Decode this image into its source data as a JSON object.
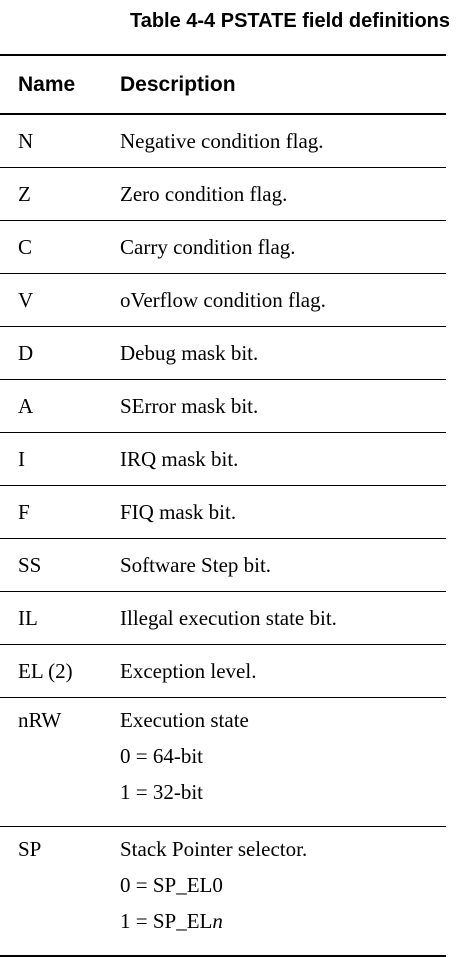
{
  "caption": "Table 4-4 PSTATE field definitions",
  "columns": {
    "name": "Name",
    "description": "Description"
  },
  "rows": [
    {
      "name": "N",
      "description": [
        "Negative condition flag."
      ]
    },
    {
      "name": "Z",
      "description": [
        "Zero condition flag."
      ]
    },
    {
      "name": "C",
      "description": [
        "Carry condition flag."
      ]
    },
    {
      "name": "V",
      "description": [
        "oVerflow condition flag."
      ]
    },
    {
      "name": "D",
      "description": [
        "Debug mask bit."
      ]
    },
    {
      "name": "A",
      "description": [
        "SError mask bit."
      ]
    },
    {
      "name": "I",
      "description": [
        "IRQ mask bit."
      ]
    },
    {
      "name": "F",
      "description": [
        "FIQ mask bit."
      ]
    },
    {
      "name": "SS",
      "description": [
        "Software Step bit."
      ]
    },
    {
      "name": "IL",
      "description": [
        "Illegal execution state bit."
      ]
    },
    {
      "name": "EL (2)",
      "description": [
        "Exception level."
      ]
    },
    {
      "name": "nRW",
      "description": [
        "Execution state",
        "0 = 64-bit",
        "1 = 32-bit"
      ]
    },
    {
      "name": "SP",
      "description": [
        "Stack Pointer selector.",
        "0 = SP_EL0",
        "1 = SP_ELn"
      ]
    }
  ]
}
